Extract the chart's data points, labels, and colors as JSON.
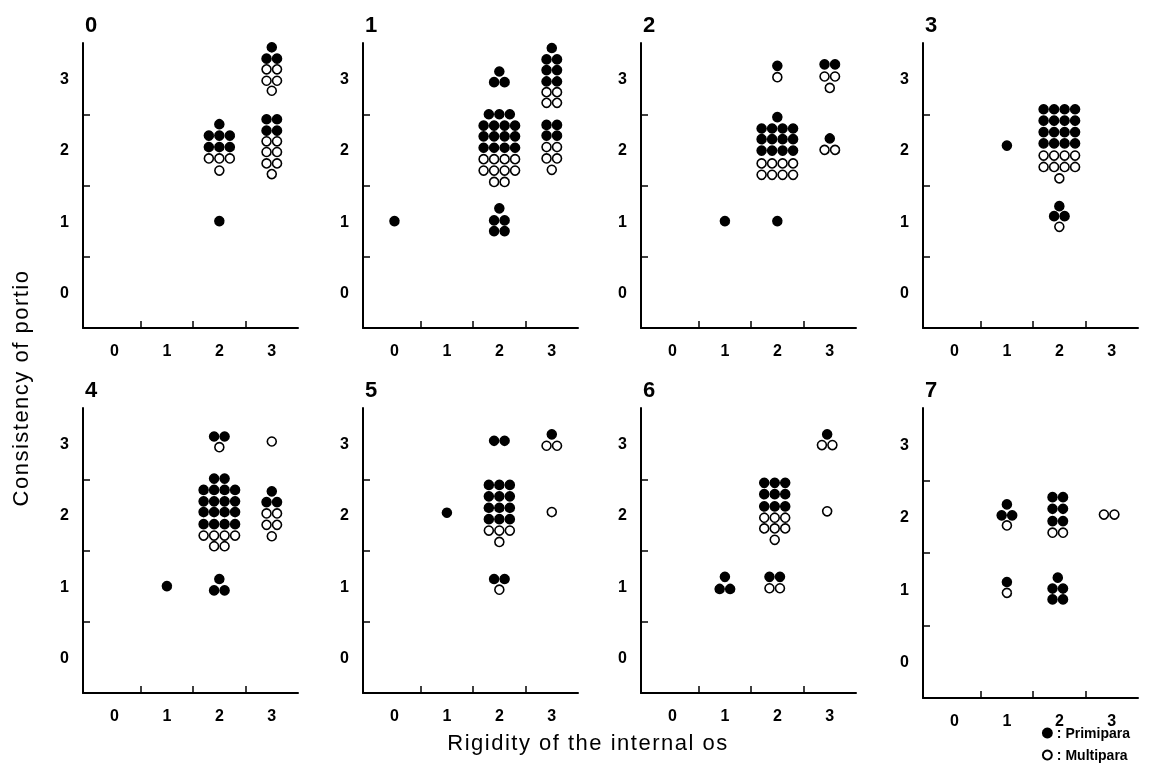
{
  "chart_data": [
    {
      "type": "scatter",
      "title": "0",
      "ylabel": "Consistency of portio",
      "marker": "circle",
      "xlim": [
        -0.6,
        3.5
      ],
      "ylim": [
        -0.5,
        3.5
      ],
      "xticks": [
        0,
        {
          "value": 0.5,
          "label": null
        },
        1,
        {
          "value": 1.5,
          "label": null
        },
        2,
        {
          "value": 2.5,
          "label": null
        },
        3
      ],
      "yticks": [
        0,
        {
          "value": 0.5,
          "label": null
        },
        1,
        {
          "value": 1.5,
          "label": null
        },
        2,
        {
          "value": 2.5,
          "label": null
        },
        3
      ],
      "series": [
        {
          "color": "#000000",
          "x": [
            2,
            1.8,
            2,
            2.2,
            1.8,
            2,
            2.2,
            2,
            3,
            2.9,
            3.1,
            2.9,
            3.1,
            2.9,
            3.1
          ],
          "values": [
            2.36,
            2.2,
            2.2,
            2.2,
            2.04,
            2.04,
            2.04,
            1,
            3.44,
            3.28,
            3.28,
            2.43,
            2.43,
            2.27,
            2.27
          ]
        },
        {
          "color": "#ffffff",
          "x": [
            1.8,
            2,
            2.2,
            2,
            2.9,
            3.1,
            2.9,
            3.1,
            3,
            2.9,
            3.1,
            2.9,
            3.1,
            2.9,
            3.1,
            3
          ],
          "values": [
            1.88,
            1.88,
            1.88,
            1.71,
            3.13,
            3.13,
            2.97,
            2.97,
            2.83,
            2.12,
            2.12,
            1.97,
            1.97,
            1.81,
            1.81,
            1.66
          ]
        }
      ]
    },
    {
      "type": "scatter",
      "title": "1",
      "marker": "circle",
      "xlim": [
        -0.6,
        3.5
      ],
      "ylim": [
        -0.5,
        3.5
      ],
      "xticks": [
        0,
        {
          "value": 0.5,
          "label": null
        },
        1,
        {
          "value": 1.5,
          "label": null
        },
        2,
        {
          "value": 2.5,
          "label": null
        },
        3
      ],
      "yticks": [
        0,
        {
          "value": 0.5,
          "label": null
        },
        1,
        {
          "value": 1.5,
          "label": null
        },
        2,
        {
          "value": 2.5,
          "label": null
        },
        3
      ],
      "series": [
        {
          "color": "#000000",
          "x": [
            0,
            2,
            1.9,
            2.1,
            1.8,
            2,
            2.2,
            1.7,
            1.9,
            2.1,
            2.3,
            1.7,
            1.9,
            2.1,
            2.3,
            1.7,
            1.9,
            2.1,
            2.3,
            2,
            1.9,
            2.1,
            1.9,
            2.1,
            3,
            2.9,
            3.1,
            2.9,
            3.1,
            2.9,
            3.1,
            2.9,
            3.1,
            2.9,
            3.1
          ],
          "values": [
            1,
            3.1,
            2.95,
            2.95,
            2.5,
            2.5,
            2.5,
            2.34,
            2.34,
            2.34,
            2.34,
            2.19,
            2.19,
            2.19,
            2.19,
            2.03,
            2.03,
            2.03,
            2.03,
            1.18,
            1.01,
            1.01,
            0.86,
            0.86,
            3.43,
            3.27,
            3.27,
            3.12,
            3.12,
            2.96,
            2.96,
            2.35,
            2.35,
            2.2,
            2.2
          ]
        },
        {
          "color": "#ffffff",
          "x": [
            1.7,
            1.9,
            2.1,
            2.3,
            1.7,
            1.9,
            2.1,
            2.3,
            1.9,
            2.1,
            2.9,
            3.1,
            2.9,
            3.1,
            2.9,
            3.1,
            2.9,
            3.1,
            3
          ],
          "values": [
            1.87,
            1.87,
            1.87,
            1.87,
            1.71,
            1.71,
            1.71,
            1.71,
            1.55,
            1.55,
            2.81,
            2.81,
            2.66,
            2.66,
            2.04,
            2.04,
            1.88,
            1.88,
            1.72
          ]
        }
      ]
    },
    {
      "type": "scatter",
      "title": "2",
      "marker": "circle",
      "xlim": [
        -0.6,
        3.5
      ],
      "ylim": [
        -0.5,
        3.5
      ],
      "xticks": [
        0,
        {
          "value": 0.5,
          "label": null
        },
        1,
        {
          "value": 1.5,
          "label": null
        },
        2,
        {
          "value": 2.5,
          "label": null
        },
        3
      ],
      "yticks": [
        0,
        {
          "value": 0.5,
          "label": null
        },
        1,
        {
          "value": 1.5,
          "label": null
        },
        2,
        {
          "value": 2.5,
          "label": null
        },
        3
      ],
      "series": [
        {
          "color": "#000000",
          "x": [
            1,
            2,
            2,
            1.7,
            1.9,
            2.1,
            2.3,
            1.7,
            1.9,
            2.1,
            2.3,
            1.7,
            1.9,
            2.1,
            2.3,
            2,
            2.9,
            3.1,
            3
          ],
          "values": [
            1,
            3.18,
            2.46,
            2.3,
            2.3,
            2.3,
            2.3,
            2.15,
            2.15,
            2.15,
            2.15,
            1.99,
            1.99,
            1.99,
            1.99,
            1,
            3.2,
            3.2,
            2.16
          ]
        },
        {
          "color": "#ffffff",
          "x": [
            2,
            1.7,
            1.9,
            2.1,
            2.3,
            1.7,
            1.9,
            2.1,
            2.3,
            2.9,
            3.1,
            3,
            2.9,
            3.1
          ],
          "values": [
            3.02,
            1.81,
            1.81,
            1.81,
            1.81,
            1.65,
            1.65,
            1.65,
            1.65,
            3.03,
            3.03,
            2.87,
            2,
            2
          ]
        }
      ]
    },
    {
      "type": "scatter",
      "title": "3",
      "marker": "circle",
      "xlim": [
        -0.6,
        3.5
      ],
      "ylim": [
        -0.5,
        3.5
      ],
      "xticks": [
        0,
        {
          "value": 0.5,
          "label": null
        },
        1,
        {
          "value": 1.5,
          "label": null
        },
        2,
        {
          "value": 2.5,
          "label": null
        },
        3
      ],
      "yticks": [
        0,
        {
          "value": 0.5,
          "label": null
        },
        1,
        {
          "value": 1.5,
          "label": null
        },
        2,
        {
          "value": 2.5,
          "label": null
        },
        3
      ],
      "series": [
        {
          "color": "#000000",
          "x": [
            1,
            1.7,
            1.9,
            2.1,
            2.3,
            1.7,
            1.9,
            2.1,
            2.3,
            1.7,
            1.9,
            2.1,
            2.3,
            1.7,
            1.9,
            2.1,
            2.3,
            2,
            1.9,
            2.1
          ],
          "values": [
            2.06,
            2.57,
            2.57,
            2.57,
            2.57,
            2.41,
            2.41,
            2.41,
            2.41,
            2.25,
            2.25,
            2.25,
            2.25,
            2.09,
            2.09,
            2.09,
            2.09,
            1.21,
            1.07,
            1.07
          ]
        },
        {
          "color": "#ffffff",
          "x": [
            1.7,
            1.9,
            2.1,
            2.3,
            1.7,
            1.9,
            2.1,
            2.3,
            2,
            2
          ],
          "values": [
            1.92,
            1.92,
            1.92,
            1.92,
            1.76,
            1.76,
            1.76,
            1.76,
            1.6,
            0.92
          ]
        }
      ]
    },
    {
      "type": "scatter",
      "title": "4",
      "marker": "circle",
      "xlim": [
        -0.6,
        3.5
      ],
      "ylim": [
        -0.5,
        3.5
      ],
      "xticks": [
        0,
        {
          "value": 0.5,
          "label": null
        },
        1,
        {
          "value": 1.5,
          "label": null
        },
        2,
        {
          "value": 2.5,
          "label": null
        },
        3
      ],
      "yticks": [
        0,
        {
          "value": 0.5,
          "label": null
        },
        1,
        {
          "value": 1.5,
          "label": null
        },
        2,
        {
          "value": 2.5,
          "label": null
        },
        3
      ],
      "series": [
        {
          "color": "#000000",
          "x": [
            1,
            1.9,
            2.1,
            1.9,
            2.1,
            1.7,
            1.9,
            2.1,
            2.3,
            1.7,
            1.9,
            2.1,
            2.3,
            1.7,
            1.9,
            2.1,
            2.3,
            1.7,
            1.9,
            2.1,
            2.3,
            2,
            1.9,
            2.1,
            3,
            2.9,
            3.1
          ],
          "values": [
            1,
            3.1,
            3.1,
            2.51,
            2.51,
            2.35,
            2.35,
            2.35,
            2.35,
            2.19,
            2.19,
            2.19,
            2.19,
            2.04,
            2.04,
            2.04,
            2.04,
            1.87,
            1.87,
            1.87,
            1.87,
            1.1,
            0.94,
            0.94,
            2.33,
            2.18,
            2.18
          ]
        },
        {
          "color": "#ffffff",
          "x": [
            2,
            1.7,
            1.9,
            2.1,
            2.3,
            1.9,
            2.1,
            3,
            2.9,
            3.1,
            2.9,
            3.1,
            3
          ],
          "values": [
            2.95,
            1.71,
            1.71,
            1.71,
            1.71,
            1.56,
            1.56,
            3.03,
            2.02,
            2.02,
            1.86,
            1.86,
            1.7
          ]
        }
      ]
    },
    {
      "type": "scatter",
      "title": "5",
      "xlabel": "Rigidity of the internal os",
      "marker": "circle",
      "xlim": [
        -0.6,
        3.5
      ],
      "ylim": [
        -0.5,
        3.5
      ],
      "xticks": [
        0,
        {
          "value": 0.5,
          "label": null
        },
        1,
        {
          "value": 1.5,
          "label": null
        },
        2,
        {
          "value": 2.5,
          "label": null
        },
        3
      ],
      "yticks": [
        0,
        {
          "value": 0.5,
          "label": null
        },
        1,
        {
          "value": 1.5,
          "label": null
        },
        2,
        {
          "value": 2.5,
          "label": null
        },
        3
      ],
      "series": [
        {
          "color": "#000000",
          "x": [
            1,
            1.9,
            2.1,
            1.8,
            2,
            2.2,
            1.8,
            2,
            2.2,
            1.8,
            2,
            2.2,
            1.8,
            2,
            2.2,
            1.9,
            2.1,
            3
          ],
          "values": [
            2.03,
            3.04,
            3.04,
            2.42,
            2.42,
            2.42,
            2.26,
            2.26,
            2.26,
            2.1,
            2.1,
            2.1,
            1.94,
            1.94,
            1.94,
            1.1,
            1.1,
            3.13
          ]
        },
        {
          "color": "#ffffff",
          "x": [
            1.8,
            2,
            2.2,
            2,
            2,
            2.9,
            3.1,
            3
          ],
          "values": [
            1.78,
            1.78,
            1.78,
            1.62,
            0.95,
            2.97,
            2.97,
            2.04
          ]
        }
      ]
    },
    {
      "type": "scatter",
      "title": "6",
      "marker": "circle",
      "xlim": [
        -0.6,
        3.5
      ],
      "ylim": [
        -0.5,
        3.5
      ],
      "xticks": [
        0,
        {
          "value": 0.5,
          "label": null
        },
        1,
        {
          "value": 1.5,
          "label": null
        },
        2,
        {
          "value": 2.5,
          "label": null
        },
        3
      ],
      "yticks": [
        0,
        {
          "value": 0.5,
          "label": null
        },
        1,
        {
          "value": 1.5,
          "label": null
        },
        2,
        {
          "value": 2.5,
          "label": null
        },
        3
      ],
      "series": [
        {
          "color": "#000000",
          "x": [
            1,
            0.9,
            1.1,
            1.75,
            1.95,
            2.15,
            1.75,
            1.95,
            2.15,
            1.75,
            1.95,
            2.15,
            1.85,
            2.05,
            2.95
          ],
          "values": [
            1.13,
            0.96,
            0.96,
            2.45,
            2.45,
            2.45,
            2.29,
            2.29,
            2.29,
            2.12,
            2.12,
            2.12,
            1.13,
            1.13,
            3.13
          ]
        },
        {
          "color": "#ffffff",
          "x": [
            1.75,
            1.95,
            2.15,
            1.75,
            1.95,
            2.15,
            1.95,
            1.85,
            2.05,
            2.85,
            3.05,
            2.95
          ],
          "values": [
            1.96,
            1.96,
            1.96,
            1.81,
            1.81,
            1.81,
            1.65,
            0.97,
            0.97,
            2.98,
            2.98,
            2.05
          ]
        }
      ]
    },
    {
      "type": "scatter",
      "title": "7",
      "marker": "circle",
      "legend": "bottom right",
      "xlim": [
        -0.6,
        3.5
      ],
      "ylim": [
        -0.5,
        3.5
      ],
      "xticks": [
        0,
        {
          "value": 0.5,
          "label": null
        },
        1,
        {
          "value": 1.5,
          "label": null
        },
        2,
        {
          "value": 2.5,
          "label": null
        },
        3
      ],
      "yticks": [
        0,
        {
          "value": 0.5,
          "label": null
        },
        1,
        {
          "value": 1.5,
          "label": null
        },
        2,
        {
          "value": 2.5,
          "label": null
        },
        3
      ],
      "series": [
        {
          "name": ": Primipara",
          "color": "#000000",
          "x": [
            1,
            0.9,
            1.1,
            1,
            1.87,
            2.07,
            1.87,
            2.07,
            1.87,
            2.07,
            1.97,
            1.87,
            2.07,
            1.87,
            2.07
          ],
          "values": [
            2.17,
            2.02,
            2.02,
            1.1,
            2.27,
            2.27,
            2.11,
            2.11,
            1.94,
            1.94,
            1.16,
            1.01,
            1.01,
            0.86,
            0.86
          ]
        },
        {
          "name": ": Multipara",
          "color": "#ffffff",
          "x": [
            1,
            1,
            1.87,
            2.07,
            2.85,
            3.05
          ],
          "values": [
            1.88,
            0.95,
            1.78,
            1.78,
            2.03,
            2.03
          ]
        }
      ]
    }
  ]
}
